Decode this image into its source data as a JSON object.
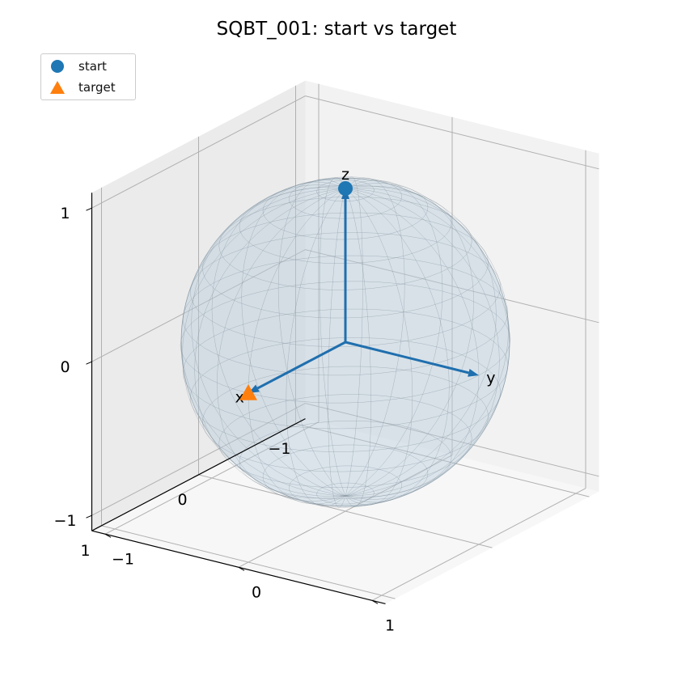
{
  "chart_data": {
    "type": "scatter",
    "title": "SQBT_001: start vs target",
    "series": [
      {
        "name": "start",
        "marker": "circle",
        "color": "#1f77b4",
        "points": [
          [
            0,
            0,
            1
          ]
        ]
      },
      {
        "name": "target",
        "marker": "triangle",
        "color": "#ff7f0e",
        "points": [
          [
            1,
            0,
            0
          ]
        ]
      }
    ],
    "axes_arrows": [
      {
        "label": "x",
        "vector": [
          1,
          0,
          0
        ]
      },
      {
        "label": "y",
        "vector": [
          0,
          1,
          0
        ]
      },
      {
        "label": "z",
        "vector": [
          0,
          0,
          1
        ]
      }
    ],
    "arrow_color": "#1f6fae",
    "sphere": {
      "radius": 1,
      "surface": "wireframe"
    },
    "x_ticks": [
      "−1",
      "0",
      "1"
    ],
    "y_ticks": [
      "−1",
      "0",
      "1"
    ],
    "z_ticks": [
      "−1",
      "0",
      "1"
    ],
    "xlim": [
      -1,
      1
    ],
    "ylim": [
      -1,
      1
    ],
    "zlim": [
      -1,
      1
    ],
    "legend": "top-left",
    "grid": true
  }
}
